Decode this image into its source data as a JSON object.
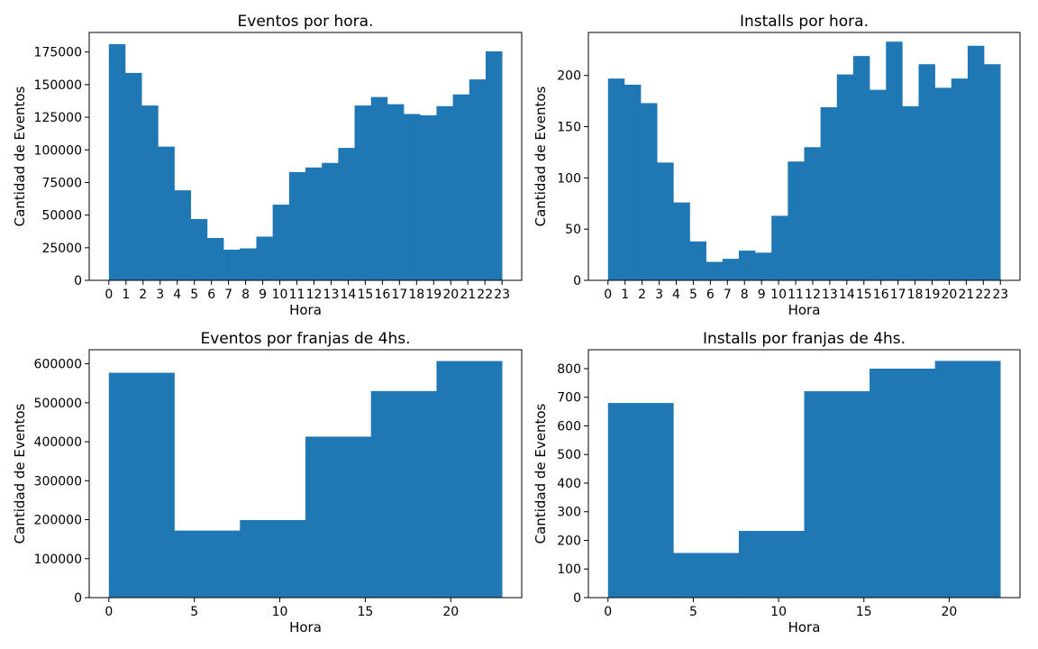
{
  "chart_data": [
    {
      "type": "bar",
      "title": "Eventos por hora.",
      "xlabel": "Hora",
      "ylabel": "Cantidad de Eventos",
      "xlim": [
        -1.15,
        24.15
      ],
      "ylim": [
        0,
        190000
      ],
      "grid": false,
      "x_ticks": [
        0,
        1,
        2,
        3,
        4,
        5,
        6,
        7,
        8,
        9,
        10,
        11,
        12,
        13,
        14,
        15,
        16,
        17,
        18,
        19,
        20,
        21,
        22,
        23
      ],
      "y_ticks": [
        0,
        25000,
        50000,
        75000,
        100000,
        125000,
        150000,
        175000
      ],
      "bin_edges": [
        0,
        0.958,
        1.917,
        2.875,
        3.833,
        4.792,
        5.75,
        6.708,
        7.667,
        8.625,
        9.583,
        10.542,
        11.5,
        12.458,
        13.417,
        14.375,
        15.333,
        16.292,
        17.25,
        18.208,
        19.167,
        20.125,
        21.083,
        22.042,
        23
      ],
      "values": [
        181000,
        159000,
        134000,
        102500,
        69000,
        47000,
        32500,
        23500,
        24500,
        33500,
        58000,
        83000,
        86500,
        90000,
        101500,
        134000,
        140500,
        135000,
        127500,
        126500,
        133500,
        142500,
        154000,
        175500
      ],
      "color": "#1f77b4"
    },
    {
      "type": "bar",
      "title": "Installs por hora.",
      "xlabel": "Hora",
      "ylabel": "Cantidad de Eventos",
      "xlim": [
        -1.15,
        24.15
      ],
      "ylim": [
        0,
        242
      ],
      "grid": false,
      "x_ticks": [
        0,
        1,
        2,
        3,
        4,
        5,
        6,
        7,
        8,
        9,
        10,
        11,
        12,
        13,
        14,
        15,
        16,
        17,
        18,
        19,
        20,
        21,
        22,
        23
      ],
      "y_ticks": [
        0,
        50,
        100,
        150,
        200
      ],
      "bin_edges": [
        0,
        0.958,
        1.917,
        2.875,
        3.833,
        4.792,
        5.75,
        6.708,
        7.667,
        8.625,
        9.583,
        10.542,
        11.5,
        12.458,
        13.417,
        14.375,
        15.333,
        16.292,
        17.25,
        18.208,
        19.167,
        20.125,
        21.083,
        22.042,
        23
      ],
      "values": [
        197,
        191,
        173,
        115,
        76,
        38,
        18,
        21,
        29,
        27,
        63,
        116,
        130,
        169,
        201,
        219,
        186,
        233,
        170,
        211,
        188,
        197,
        229,
        211
      ],
      "color": "#1f77b4"
    },
    {
      "type": "bar",
      "title": "Eventos por franjas de 4hs.",
      "xlabel": "Hora",
      "ylabel": "Cantidad de Eventos",
      "xlim": [
        -1.15,
        24.15
      ],
      "ylim": [
        0,
        636000
      ],
      "grid": false,
      "x_ticks": [
        0,
        5,
        10,
        15,
        20
      ],
      "y_ticks": [
        0,
        100000,
        200000,
        300000,
        400000,
        500000,
        600000
      ],
      "bin_edges": [
        0,
        3.833,
        7.667,
        11.5,
        15.333,
        19.167,
        23
      ],
      "values": [
        577000,
        172000,
        199000,
        413000,
        530000,
        607000
      ],
      "color": "#1f77b4"
    },
    {
      "type": "bar",
      "title": "Installs por franjas de 4hs.",
      "xlabel": "Hora",
      "ylabel": "Cantidad de Eventos",
      "xlim": [
        -1.15,
        24.15
      ],
      "ylim": [
        0,
        866
      ],
      "grid": false,
      "x_ticks": [
        0,
        5,
        10,
        15,
        20
      ],
      "y_ticks": [
        0,
        100,
        200,
        300,
        400,
        500,
        600,
        700,
        800
      ],
      "bin_edges": [
        0,
        3.833,
        7.667,
        11.5,
        15.333,
        19.167,
        23
      ],
      "values": [
        680,
        156,
        233,
        721,
        800,
        827
      ],
      "color": "#1f77b4"
    }
  ]
}
